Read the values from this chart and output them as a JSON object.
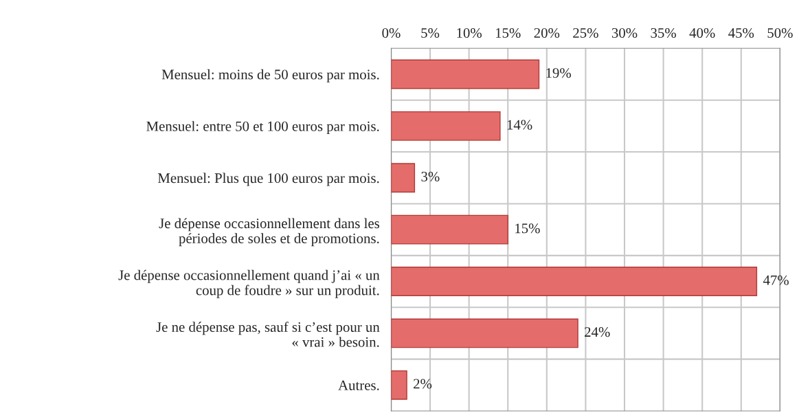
{
  "chart_data": {
    "type": "bar",
    "orientation": "horizontal",
    "categories": [
      "Mensuel: moins de 50 euros par mois.",
      "Mensuel: entre 50 et 100 euros par mois.",
      "Mensuel: Plus que 100 euros par mois.",
      "Je dépense occasionnellement dans les\npériodes de soles et de promotions.",
      "Je dépense occasionnellement quand j’ai « un\ncoup de foudre » sur un produit.",
      "Je ne dépense pas, sauf si c’est pour un\n« vrai » besoin.",
      "Autres."
    ],
    "values": [
      19,
      14,
      3,
      15,
      47,
      24,
      2
    ],
    "value_labels": [
      "19%",
      "14%",
      "3%",
      "15%",
      "47%",
      "24%",
      "2%"
    ],
    "color": "#e46c6a",
    "xlim": [
      0,
      50
    ],
    "xticks": [
      {
        "value": 0,
        "label": "0%"
      },
      {
        "value": 5,
        "label": "5%"
      },
      {
        "value": 10,
        "label": "10%"
      },
      {
        "value": 15,
        "label": "15%"
      },
      {
        "value": 20,
        "label": "20%"
      },
      {
        "value": 25,
        "label": "25%"
      },
      {
        "value": 30,
        "label": "30%"
      },
      {
        "value": 35,
        "label": "35%"
      },
      {
        "value": 40,
        "label": "40%"
      },
      {
        "value": 45,
        "label": "45%"
      },
      {
        "value": 50,
        "label": "50%"
      }
    ],
    "grid": true
  }
}
